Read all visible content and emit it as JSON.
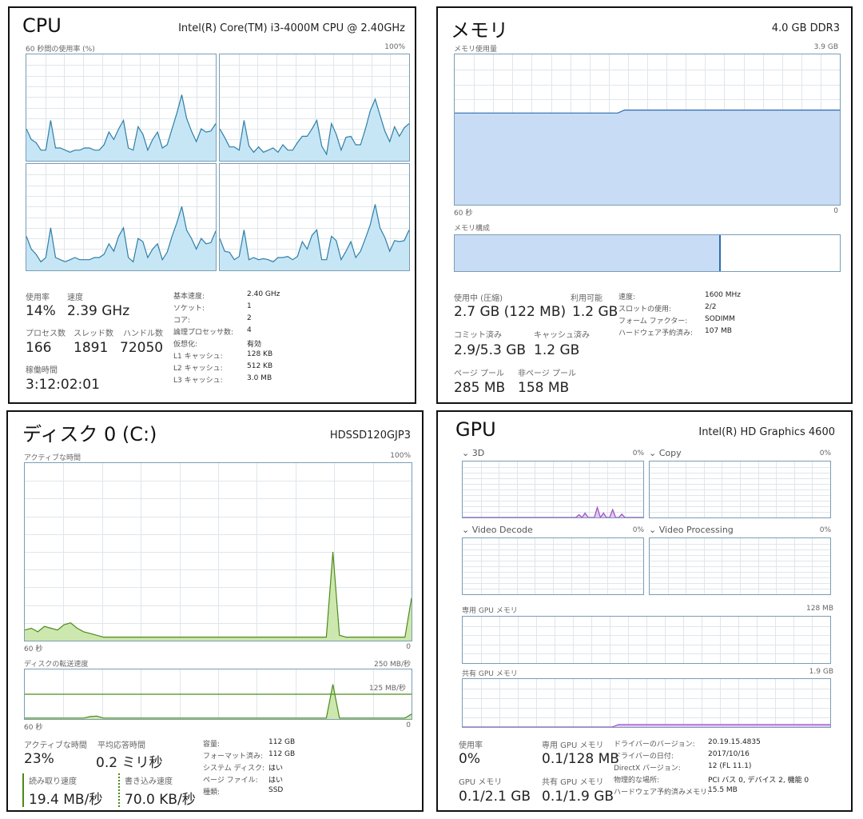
{
  "cpu": {
    "title": "CPU",
    "model": "Intel(R) Core(TM) i3-4000M CPU @ 2.40GHz",
    "graph_caption": "60 秒間の使用率 (%)",
    "graph_max": "100%",
    "stats": {
      "usage_label": "使用率",
      "usage": "14%",
      "speed_label": "速度",
      "speed": "2.39 GHz",
      "processes_label": "プロセス数",
      "processes": "166",
      "threads_label": "スレッド数",
      "threads": "1891",
      "handles_label": "ハンドル数",
      "handles": "72050",
      "uptime_label": "稼働時間",
      "uptime": "3:12:02:01"
    },
    "info": [
      {
        "label": "基本速度:",
        "value": "2.40 GHz"
      },
      {
        "label": "ソケット:",
        "value": "1"
      },
      {
        "label": "コア:",
        "value": "2"
      },
      {
        "label": "論理プロセッサ数:",
        "value": "4"
      },
      {
        "label": "仮想化:",
        "value": "有効"
      },
      {
        "label": "L1 キャッシュ:",
        "value": "128 KB"
      },
      {
        "label": "L2 キャッシュ:",
        "value": "512 KB"
      },
      {
        "label": "L3 キャッシュ:",
        "value": "3.0 MB"
      }
    ]
  },
  "memory": {
    "title": "メモリ",
    "spec": "4.0 GB DDR3",
    "graph_caption": "メモリ使用量",
    "graph_max": "3.9 GB",
    "time_left": "60 秒",
    "time_right": "0",
    "composition_caption": "メモリ構成",
    "stats": {
      "in_use_label": "使用中 (圧縮)",
      "in_use": "2.7 GB (122 MB)",
      "available_label": "利用可能",
      "available": "1.2 GB",
      "committed_label": "コミット済み",
      "committed": "2.9/5.3 GB",
      "cached_label": "キャッシュ済み",
      "cached": "1.2 GB",
      "paged_label": "ページ プール",
      "paged": "285 MB",
      "nonpaged_label": "非ページ プール",
      "nonpaged": "158 MB"
    },
    "info": [
      {
        "label": "速度:",
        "value": "1600 MHz"
      },
      {
        "label": "スロットの使用:",
        "value": "2/2"
      },
      {
        "label": "フォーム ファクター:",
        "value": "SODIMM"
      },
      {
        "label": "ハードウェア予約済み:",
        "value": "107 MB"
      }
    ]
  },
  "disk": {
    "title": "ディスク 0 (C:)",
    "model": "HDSSD120GJP3",
    "graph_caption": "アクティブな時間",
    "graph_max": "100%",
    "time_left": "60 秒",
    "time_right": "0",
    "transfer_caption": "ディスクの転送速度",
    "transfer_max": "250 MB/秒",
    "transfer_mid": "125 MB/秒",
    "transfer_time_left": "60 秒",
    "transfer_time_right": "0",
    "stats": {
      "active_label": "アクティブな時間",
      "active": "23%",
      "response_label": "平均応答時間",
      "response": "0.2 ミリ秒",
      "read_label": "読み取り速度",
      "read": "19.4 MB/秒",
      "write_label": "書き込み速度",
      "write": "70.0 KB/秒"
    },
    "info": [
      {
        "label": "容量:",
        "value": "112 GB"
      },
      {
        "label": "フォーマット済み:",
        "value": "112 GB"
      },
      {
        "label": "システム ディスク:",
        "value": "はい"
      },
      {
        "label": "ページ ファイル:",
        "value": "はい"
      },
      {
        "label": "種類:",
        "value": "SSD"
      }
    ]
  },
  "gpu": {
    "title": "GPU",
    "model": "Intel(R) HD Graphics 4600",
    "engines": [
      {
        "name": "3D",
        "pct": "0%"
      },
      {
        "name": "Copy",
        "pct": "0%"
      },
      {
        "name": "Video Decode",
        "pct": "0%"
      },
      {
        "name": "Video Processing",
        "pct": "0%"
      }
    ],
    "dedicated_caption": "専用 GPU メモリ",
    "dedicated_max": "128 MB",
    "shared_caption": "共有 GPU メモリ",
    "shared_max": "1.9 GB",
    "stats": {
      "usage_label": "使用率",
      "usage": "0%",
      "dedicated_label": "専用 GPU メモリ",
      "dedicated": "0.1/128 MB",
      "gpumem_label": "GPU メモリ",
      "gpumem": "0.1/2.1 GB",
      "shared_label": "共有 GPU メモリ",
      "shared": "0.1/1.9 GB"
    },
    "info": [
      {
        "label": "ドライバーのバージョン:",
        "value": "20.19.15.4835"
      },
      {
        "label": "ドライバーの日付:",
        "value": "2017/10/16"
      },
      {
        "label": "DirectX バージョン:",
        "value": "12 (FL 11.1)"
      },
      {
        "label": "物理的な場所:",
        "value": "PCI バス 0, デバイス 2, 機能 0"
      },
      {
        "label": "ハードウェア予約済みメモリ:",
        "value": "15.5 MB"
      }
    ]
  },
  "colors": {
    "cpu_line": "#2e7fa8",
    "cpu_fill": "#c7e6f5",
    "mem_line": "#2a6db0",
    "mem_fill": "#c9dcf5",
    "disk_line": "#4c8a1c",
    "disk_fill": "#cde8ae",
    "gpu_line": "#9c4cc8",
    "gpu_fill": "#e2c9f0",
    "grid": "#dfe6eb"
  }
}
